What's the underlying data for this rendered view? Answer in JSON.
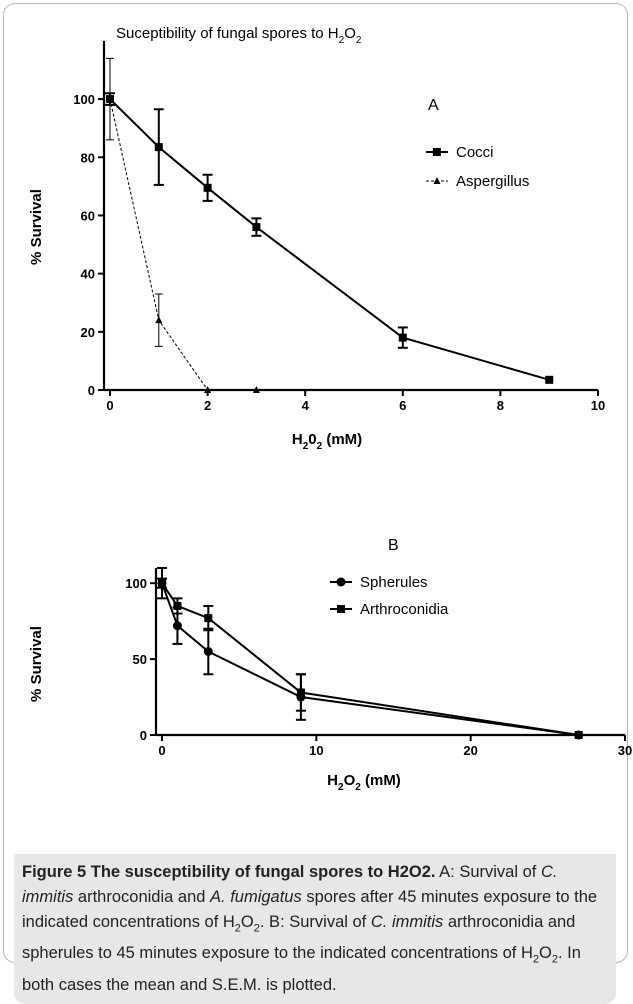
{
  "chart_data": [
    {
      "type": "line",
      "title": "Suceptibility of fungal spores to H2O2",
      "title_parts": {
        "main": "Suceptibility of fungal spores to H",
        "sub": "2",
        "tail": "O",
        "sub2": "2"
      },
      "panel_label": "A",
      "xlabel": "H20 2 (mM)",
      "xlabel_parts": {
        "a": "H",
        "b": "2",
        "c": "0",
        "d": "2",
        "e": " (mM)"
      },
      "ylabel": "% Survival",
      "xlim": [
        0,
        10
      ],
      "ylim": [
        0,
        110
      ],
      "xticks": [
        "0",
        "2",
        "4",
        "6",
        "8",
        "10"
      ],
      "yticks": [
        "0",
        "20",
        "40",
        "60",
        "80",
        "100"
      ],
      "legend_position": "top-right",
      "series": [
        {
          "name": "Cocci",
          "style": "solid-square",
          "x": [
            0,
            1,
            2,
            3,
            6,
            9
          ],
          "y": [
            100,
            83.5,
            69.5,
            56,
            18,
            3.5
          ],
          "err": [
            2,
            13,
            4.5,
            3,
            3.5,
            0
          ]
        },
        {
          "name": "Aspergillus",
          "style": "dashed-triangle",
          "x": [
            0,
            1,
            2,
            3
          ],
          "y": [
            100,
            24,
            0,
            0
          ],
          "err": [
            14,
            9,
            0,
            0
          ]
        }
      ]
    },
    {
      "type": "line",
      "panel_label": "B",
      "xlabel": "H2O2 (mM)",
      "xlabel_parts": {
        "a": "H",
        "b": "2",
        "c": "O",
        "d": "2",
        "e": " (mM)"
      },
      "ylabel": "% Survival",
      "xlim": [
        0,
        30
      ],
      "ylim": [
        0,
        110
      ],
      "xticks": [
        "0",
        "10",
        "20",
        "30"
      ],
      "yticks": [
        "0",
        "50",
        "100"
      ],
      "legend_position": "top-right",
      "series": [
        {
          "name": "Spherules",
          "style": "solid-circle",
          "x": [
            0,
            1,
            3,
            9,
            27
          ],
          "y": [
            100,
            72,
            55,
            25,
            0
          ],
          "err": [
            10,
            12,
            15,
            15,
            0
          ]
        },
        {
          "name": "Arthroconidia",
          "style": "solid-square",
          "x": [
            0,
            1,
            3,
            9,
            27
          ],
          "y": [
            100,
            85,
            77,
            28,
            0
          ],
          "err": [
            3,
            5,
            8,
            12,
            0
          ]
        }
      ]
    }
  ],
  "caption": {
    "label": "Figure 5 The susceptibility of fungal spores to H2O2.",
    "body_parts": [
      {
        "t": " A: Survival of ",
        "i": false
      },
      {
        "t": "C. immitis",
        "i": true
      },
      {
        "t": " arthroconidia and ",
        "i": false
      },
      {
        "t": "A. fumigatus",
        "i": true
      },
      {
        "t": " spores after 45 minutes exposure to the indicated concentrations of H",
        "i": false
      },
      {
        "t": "2",
        "sub": true
      },
      {
        "t": "O",
        "i": false
      },
      {
        "t": "2",
        "sub": true
      },
      {
        "t": ". B: Survival of ",
        "i": false
      },
      {
        "t": "C. immitis",
        "i": true
      },
      {
        "t": " arthroconidia and spherules to 45 minutes exposure to the indicated concentrations of H",
        "i": false
      },
      {
        "t": "2",
        "sub": true
      },
      {
        "t": "O",
        "i": false
      },
      {
        "t": "2",
        "sub": true
      },
      {
        "t": ". In both cases the mean and S.E.M. is plotted.",
        "i": false
      }
    ]
  }
}
